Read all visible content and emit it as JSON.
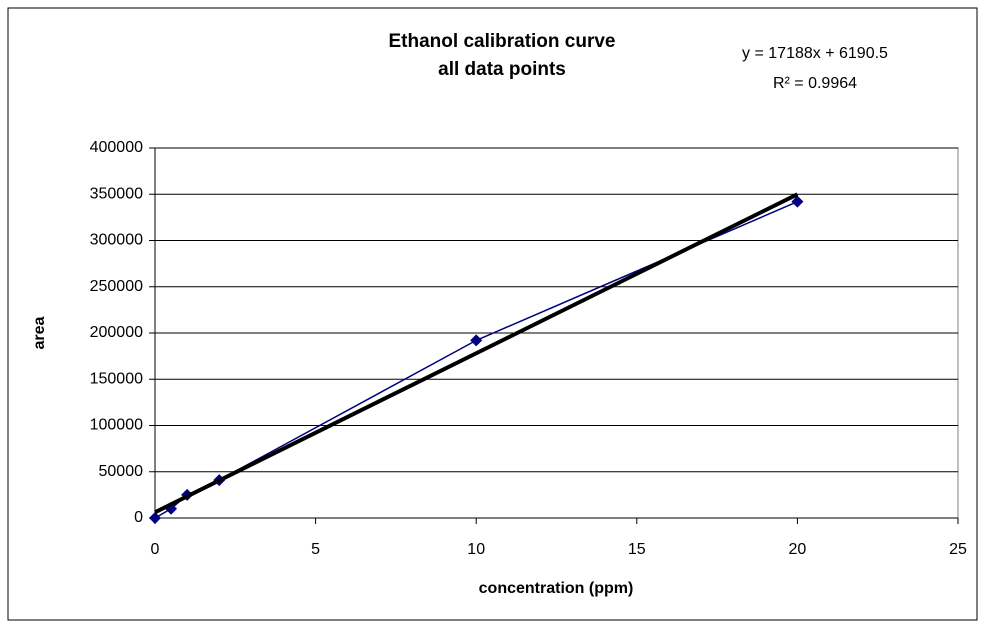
{
  "chart_data": {
    "type": "scatter",
    "title": [
      "Ethanol calibration curve",
      "all data points"
    ],
    "annotations": [
      "y = 17188x + 6190.5",
      "R² = 0.9964"
    ],
    "xlabel": "concentration (ppm)",
    "ylabel": "area",
    "xlim": [
      0,
      25
    ],
    "xticks": [
      0,
      5,
      10,
      15,
      20,
      25
    ],
    "ylim": [
      0,
      400000
    ],
    "yticks": [
      0,
      50000,
      100000,
      150000,
      200000,
      250000,
      300000,
      350000,
      400000
    ],
    "grid": true,
    "series": [
      {
        "color": "#000080",
        "marker": "diamond",
        "x": [
          0,
          0.5,
          1,
          2,
          10,
          20
        ],
        "values": [
          0,
          10000,
          25000,
          41000,
          192000,
          342000
        ]
      },
      {
        "color": "#000000",
        "marker": "none",
        "x": [
          0,
          20
        ],
        "values": [
          6190.5,
          349950.5
        ]
      }
    ]
  }
}
